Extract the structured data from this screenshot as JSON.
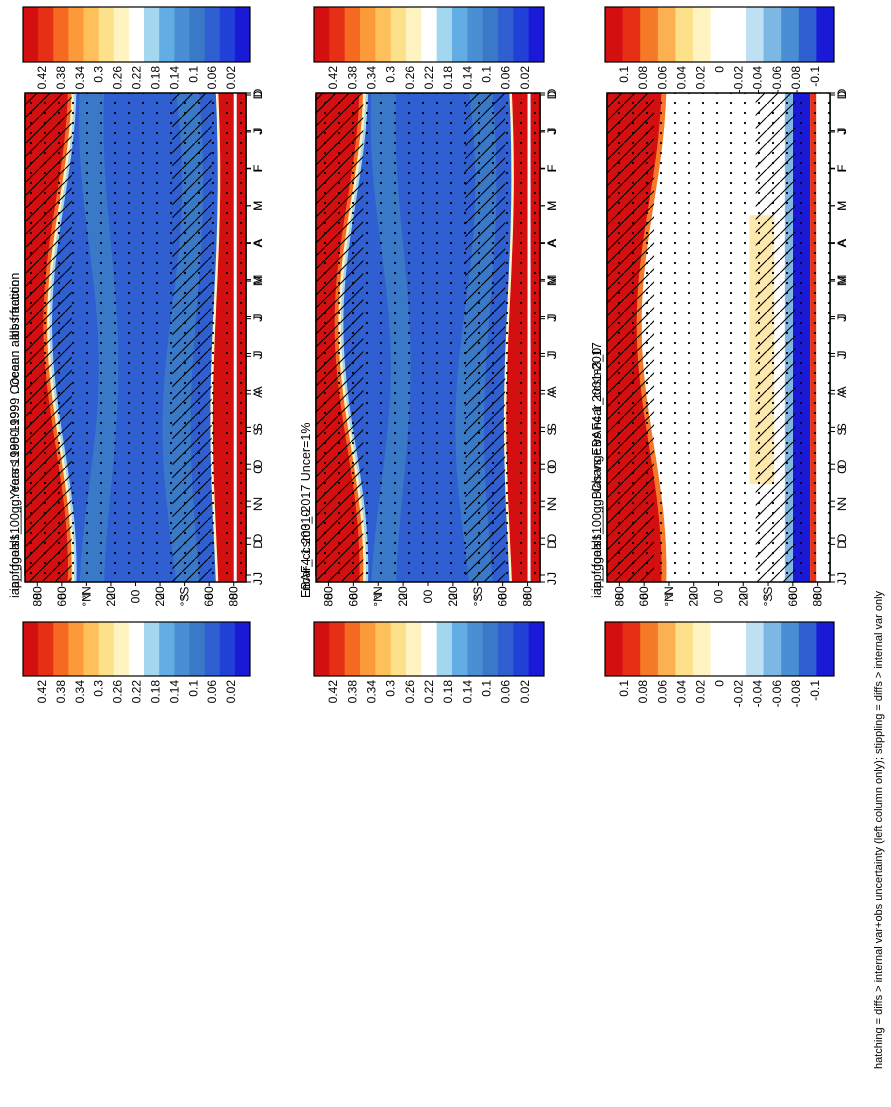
{
  "footer_note": "hatching = diffs > internal var+obs uncertainty (left column only); stippling = diffs > internal var only",
  "colors": {
    "abs_palette": [
      "#1a1ad6",
      "#2040d8",
      "#2f5fd0",
      "#3a78c8",
      "#4a8fd4",
      "#62aee4",
      "#a3d6ef",
      "#ffffff",
      "#fff3c2",
      "#fde08a",
      "#fdc05a",
      "#fc9a3a",
      "#f56a20",
      "#e53016",
      "#d40f10"
    ],
    "diff_palette": [
      "#1a1ad6",
      "#2f5fd0",
      "#4a8fd4",
      "#7db8e4",
      "#bfe0f2",
      "#ffffff",
      "#ffffff",
      "#fff3c2",
      "#fde08a",
      "#fdb050",
      "#f57a28",
      "#e53016",
      "#d40f10"
    ]
  },
  "chart_data": [
    {
      "id": "model_mean",
      "type": "heatmap",
      "title": "iap_fgoals1_0_g: Years 1980-1999 : Ocean : albs fraction",
      "months": [
        "D",
        "J",
        "F",
        "M",
        "A",
        "M",
        "J",
        "J",
        "A",
        "S",
        "O",
        "N",
        "D",
        "J"
      ],
      "lat_ticks": [
        "80",
        "60",
        "°N",
        "20",
        "0",
        "20",
        "°S",
        "60",
        "80"
      ],
      "colorbar_labels": [
        "0.42",
        "0.38",
        "0.34",
        "0.3",
        "0.26",
        "0.22",
        "0.18",
        "0.14",
        "0.1",
        "0.06",
        "0.02"
      ],
      "palette": "abs",
      "hatching": true,
      "stippling": true
    },
    {
      "id": "model_vs_ref",
      "type": "heatmap",
      "title": "iap_fgoals1_0_g: Years 1980-1999 : Ocean : albs fraction",
      "months": [
        "D",
        "J",
        "F",
        "M",
        "A",
        "M",
        "J",
        "J",
        "A",
        "S",
        "O",
        "N",
        "D",
        "J"
      ],
      "lat_ticks": [
        "80",
        "60",
        "°N",
        "20",
        "0",
        "20",
        "°S",
        "60",
        "80"
      ],
      "colorbar_labels": [
        "0.42",
        "0.38",
        "0.34",
        "0.3",
        "0.26",
        "0.22",
        "0.18",
        "0.14",
        "0.1",
        "0.06",
        "0.02"
      ],
      "palette": "abs",
      "hatching": false,
      "stippling": true
    },
    {
      "id": "obs",
      "type": "heatmap",
      "title": "EBAF4.1 2001-2017 Uncer=1%",
      "months": [
        "D",
        "J",
        "F",
        "M",
        "A",
        "M",
        "J",
        "J",
        "A",
        "S",
        "O",
        "N",
        "D",
        "J"
      ],
      "lat_ticks": [
        "80",
        "60",
        "°N",
        "20",
        "0",
        "20",
        "°S",
        "60",
        "80"
      ],
      "colorbar_labels": [
        "0.42",
        "0.38",
        "0.34",
        "0.3",
        "0.26",
        "0.22",
        "0.18",
        "0.14",
        "0.1",
        "0.06",
        "0.02"
      ],
      "palette": "abs",
      "hatching": true,
      "stippling": true
    },
    {
      "id": "ref_model",
      "type": "heatmap",
      "title": "ncar_ccsm3_0",
      "months": [
        "D",
        "J",
        "F",
        "M",
        "A",
        "M",
        "J",
        "J",
        "A",
        "S",
        "O",
        "N",
        "D",
        "J"
      ],
      "lat_ticks": [
        "80",
        "60",
        "°N",
        "20",
        "0",
        "20",
        "°S",
        "60",
        "80"
      ],
      "colorbar_labels": [
        "0.42",
        "0.38",
        "0.34",
        "0.3",
        "0.26",
        "0.22",
        "0.18",
        "0.14",
        "0.1",
        "0.06",
        "0.02"
      ],
      "palette": "abs",
      "hatching": false,
      "stippling": true
    },
    {
      "id": "bias",
      "type": "heatmap",
      "title": "iap_fgoals1_0_g: Bias vs EBAF4.1 2001-2017",
      "months": [
        "D",
        "J",
        "F",
        "M",
        "A",
        "M",
        "J",
        "J",
        "A",
        "S",
        "O",
        "N",
        "D",
        "J"
      ],
      "lat_ticks": [
        "80",
        "60",
        "°N",
        "20",
        "0",
        "20",
        "°S",
        "60",
        "80"
      ],
      "colorbar_labels": [
        "0.1",
        "0.08",
        "0.06",
        "0.04",
        "0.02",
        "0",
        "-0.02",
        "-0.04",
        "-0.06",
        "-0.08",
        "-0.1"
      ],
      "palette": "diff",
      "hatching": true,
      "stippling": true
    },
    {
      "id": "change",
      "type": "heatmap",
      "title": "iap_fgoals1_0_g: Change vs ncar_ccsm3_0",
      "months": [
        "D",
        "J",
        "F",
        "M",
        "A",
        "M",
        "J",
        "J",
        "A",
        "S",
        "O",
        "N",
        "D",
        "J"
      ],
      "lat_ticks": [
        "80",
        "60",
        "°N",
        "20",
        "0",
        "20",
        "°S",
        "60",
        "80"
      ],
      "colorbar_labels": [
        "0.1",
        "0.08",
        "0.06",
        "0.04",
        "0.02",
        "0",
        "-0.02",
        "-0.04",
        "-0.06",
        "-0.08",
        "-0.1"
      ],
      "palette": "diff",
      "hatching": false,
      "stippling": true
    }
  ]
}
